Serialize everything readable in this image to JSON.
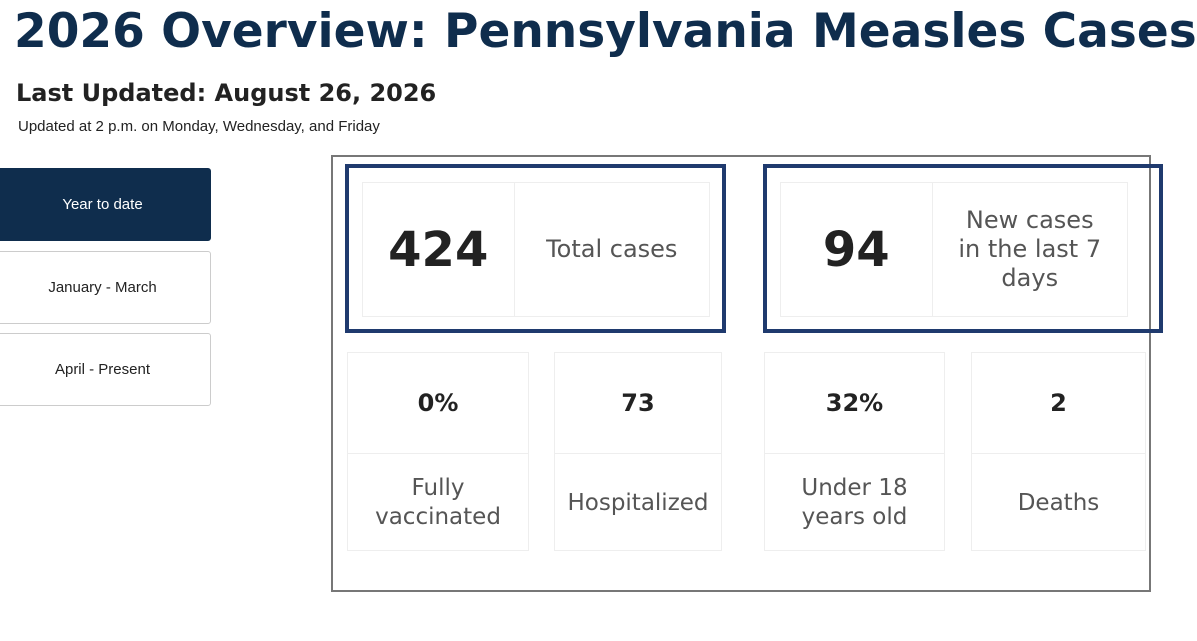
{
  "header": {
    "title": "2026 Overview: Pennsylvania Measles Cases",
    "last_updated_label": "Last Updated:",
    "last_updated_date": "August 26, 2026",
    "update_note": "Updated at 2 p.m. on Monday, Wednesday, and Friday"
  },
  "tabs": [
    "Year to date",
    "January - March",
    "April - Present"
  ],
  "highlights": [
    {
      "value": 424,
      "label": "Total cases"
    },
    {
      "value": 94,
      "label": "New cases in the last 7 days"
    }
  ],
  "stats": [
    {
      "value": "0%",
      "label": "Fully vaccinated"
    },
    {
      "value": 73,
      "label": "Hospitalized"
    },
    {
      "value": "32%",
      "label": "Under 18 years old"
    },
    {
      "value": 2,
      "label": "Deaths"
    }
  ]
}
